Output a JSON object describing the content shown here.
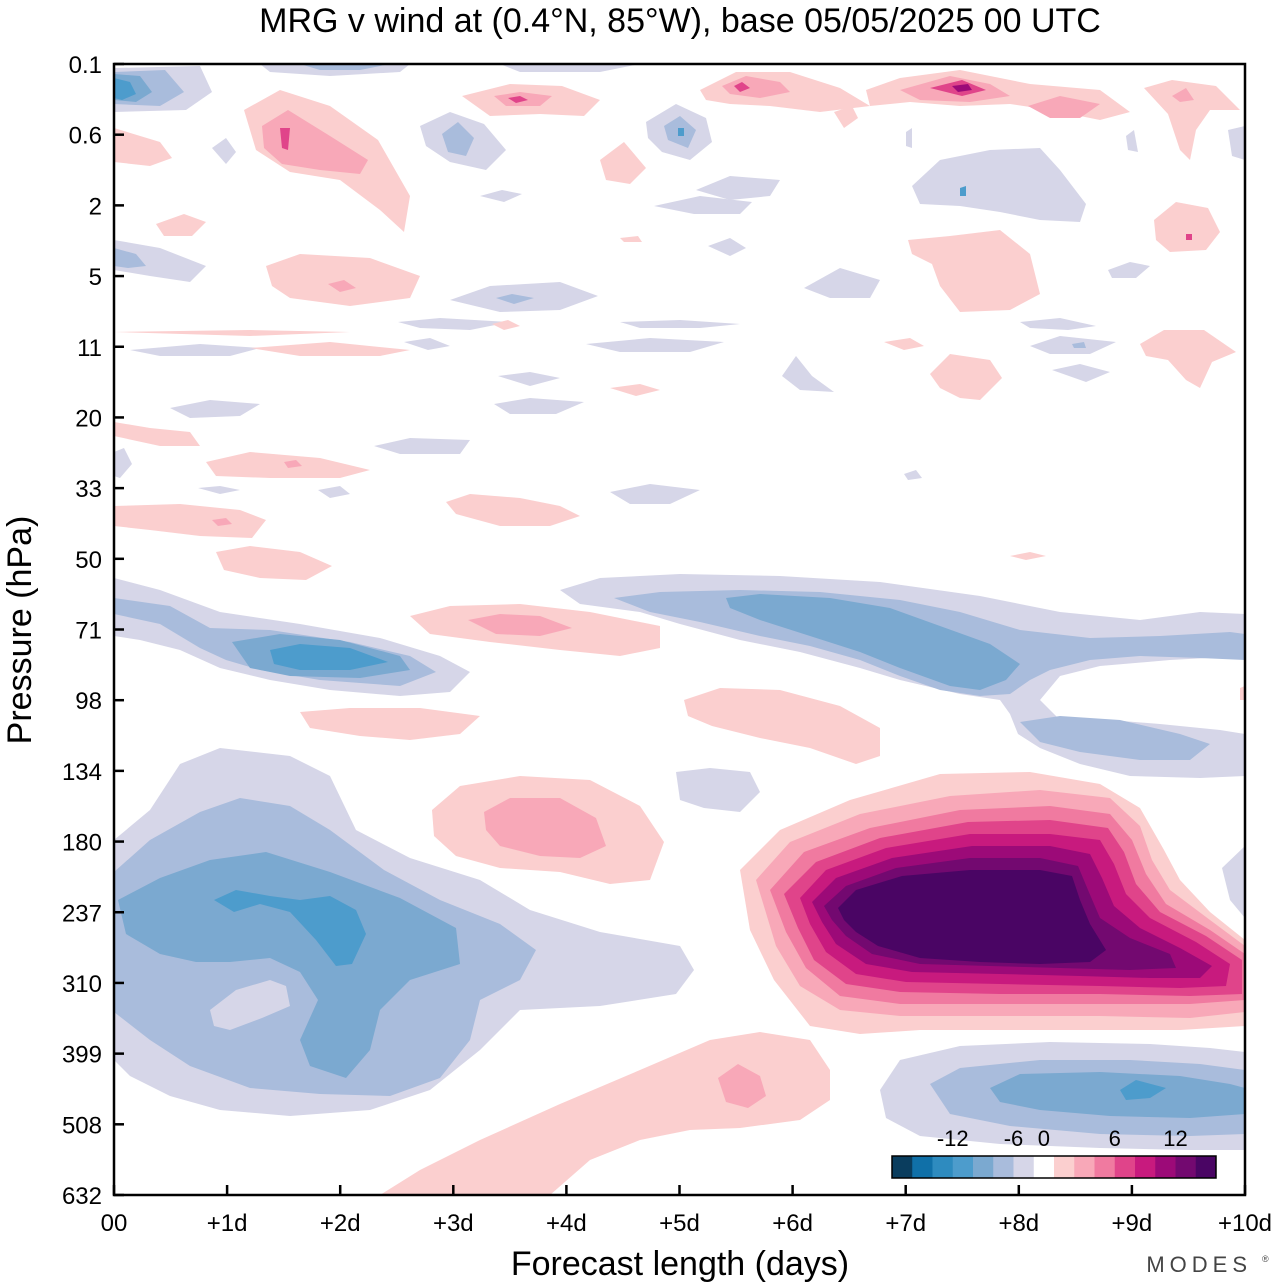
{
  "chart_data": {
    "type": "heatmap",
    "title": "MRG v wind at (0.4°N, 85°W),  base 05/05/2025  00 UTC",
    "xlabel": "Forecast length (days)",
    "ylabel": "Pressure (hPa)",
    "x_ticks": [
      "00",
      "+1d",
      "+2d",
      "+3d",
      "+4d",
      "+5d",
      "+6d",
      "+7d",
      "+8d",
      "+9d",
      "+10d"
    ],
    "y_ticks": [
      "0.1",
      "0.6",
      "2",
      "5",
      "11",
      "20",
      "33",
      "50",
      "71",
      "98",
      "134",
      "180",
      "237",
      "310",
      "399",
      "508",
      "632"
    ],
    "xlim": [
      0,
      10
    ],
    "colorbar": {
      "tick_labels": [
        "-12",
        "-6",
        "0",
        "6",
        "12"
      ],
      "tick_values": [
        -12,
        -6,
        0,
        6,
        12
      ],
      "levels": [
        -16,
        -14,
        -12,
        -10,
        -8,
        -6,
        -4,
        -2,
        2,
        4,
        6,
        8,
        10,
        12,
        14,
        16
      ],
      "colors": [
        "#0a3d5e",
        "#1070a8",
        "#2e8bbf",
        "#4d9ccc",
        "#7ba9d0",
        "#a9bcdc",
        "#d6d6e8",
        "#ffffff",
        "#fbcfcf",
        "#f8a8b8",
        "#f07aa0",
        "#e0448a",
        "#c81a7e",
        "#9c0a78",
        "#730970",
        "#4a0564"
      ]
    },
    "features": [
      {
        "x": 0.1,
        "level": "0.1",
        "v": -6
      },
      {
        "x": 1.5,
        "level": "0.6",
        "v": 6
      },
      {
        "x": 3.5,
        "level": "0.3",
        "v": 6
      },
      {
        "x": 5.5,
        "level": "0.2",
        "v": 6
      },
      {
        "x": 7.5,
        "level": "0.2",
        "v": 8
      },
      {
        "x": 5.0,
        "level": "0.6",
        "v": -6
      },
      {
        "x": 1.3,
        "level": "237",
        "v": -10
      },
      {
        "x": 2.0,
        "level": "237",
        "v": -10
      },
      {
        "x": 0.5,
        "level": "310",
        "v": -6
      },
      {
        "x": 3.9,
        "level": "180",
        "v": 4
      },
      {
        "x": 7.6,
        "level": "237",
        "v": 16
      },
      {
        "x": 9.5,
        "level": "310",
        "v": 12
      },
      {
        "x": 5.0,
        "level": "71",
        "v": -6
      },
      {
        "x": 7.0,
        "level": "71",
        "v": -8
      },
      {
        "x": 2.1,
        "level": "71",
        "v": -8
      },
      {
        "x": 8.3,
        "level": "508",
        "v": -6
      },
      {
        "x": 9.0,
        "level": "450",
        "v": -8
      },
      {
        "x": 3.4,
        "level": "71",
        "v": 4
      },
      {
        "x": 5.8,
        "level": "98",
        "v": 2
      },
      {
        "x": 5.5,
        "level": "450",
        "v": 4
      }
    ]
  },
  "logo": {
    "text": "MODES"
  }
}
